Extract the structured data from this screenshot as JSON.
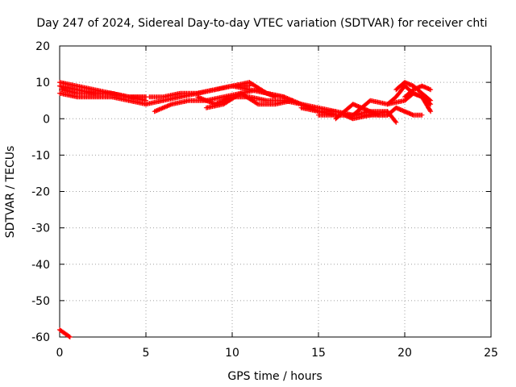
{
  "chart_data": {
    "type": "scatter",
    "title": "Day 247 of 2024, Sidereal Day-to-day VTEC variation (SDTVAR) for receiver chti",
    "xlabel": "GPS time / hours",
    "ylabel": "SDTVAR / TECUs",
    "xlim": [
      0,
      25
    ],
    "ylim": [
      -60,
      20
    ],
    "xticks": [
      0,
      5,
      10,
      15,
      20,
      25
    ],
    "yticks": [
      -60,
      -50,
      -40,
      -30,
      -20,
      -10,
      0,
      10,
      20
    ],
    "grid": true,
    "marker": "plus",
    "series": [
      {
        "name": "SDTVAR",
        "color": "#ff0000",
        "tracks": [
          {
            "x": [
              0.0,
              1.0,
              2.0,
              3.0,
              4.0,
              5.0
            ],
            "y": [
              9,
              8,
              7,
              7,
              6,
              5
            ]
          },
          {
            "x": [
              0.0,
              1.0,
              2.0,
              3.0,
              4.0,
              5.0
            ],
            "y": [
              10,
              9,
              8,
              7,
              6,
              6
            ]
          },
          {
            "x": [
              0.0,
              1.0,
              2.0,
              3.0,
              4.0,
              5.0
            ],
            "y": [
              7,
              6,
              6,
              6,
              5,
              4
            ]
          },
          {
            "x": [
              0.1,
              1.0,
              2.0,
              3.0,
              4.0,
              5.0
            ],
            "y": [
              8,
              7,
              7,
              7,
              6,
              6
            ]
          },
          {
            "x": [
              5.0,
              6.0,
              7.0,
              8.0,
              9.0,
              10.0,
              11.0
            ],
            "y": [
              4,
              5,
              6,
              7,
              8,
              9,
              9
            ]
          },
          {
            "x": [
              5.2,
              6.0,
              7.0,
              8.0,
              9.0,
              10.0,
              11.0,
              12.0,
              13.0
            ],
            "y": [
              6,
              6,
              7,
              7,
              8,
              9,
              10,
              7,
              6
            ]
          },
          {
            "x": [
              5.5,
              6.5,
              7.5,
              8.5,
              9.5,
              10.5,
              11.5,
              12.5
            ],
            "y": [
              2,
              4,
              5,
              5,
              6,
              7,
              8,
              6
            ]
          },
          {
            "x": [
              8.0,
              9.0,
              10.0,
              11.0,
              12.0,
              13.0
            ],
            "y": [
              6,
              4,
              6,
              6,
              5,
              5
            ]
          },
          {
            "x": [
              8.5,
              9.5,
              10.5,
              11.5,
              12.5,
              13.5
            ],
            "y": [
              3,
              4,
              7,
              4,
              4,
              5
            ]
          },
          {
            "x": [
              10.0,
              11.0,
              12.0,
              13.0,
              14.0,
              15.0,
              16.0
            ],
            "y": [
              9,
              8,
              7,
              6,
              4,
              3,
              2
            ]
          },
          {
            "x": [
              13.0,
              14.0,
              15.0,
              16.0,
              17.0,
              18.0,
              19.0
            ],
            "y": [
              5,
              4,
              2,
              1,
              1,
              2,
              2
            ]
          },
          {
            "x": [
              15.0,
              16.0,
              16.5,
              17.0,
              18.0,
              19.0,
              19.5
            ],
            "y": [
              1,
              1,
              1,
              0,
              1,
              2,
              -1
            ]
          },
          {
            "x": [
              14.0,
              15.0,
              16.0,
              17.0,
              18.0,
              19.0
            ],
            "y": [
              3,
              2,
              2,
              1,
              1,
              1
            ]
          },
          {
            "x": [
              16.0,
              16.5,
              17.0,
              17.5,
              18.0,
              18.5,
              19.0,
              19.5,
              20.0,
              20.5,
              21.0
            ],
            "y": [
              0,
              2,
              4,
              3,
              2,
              1,
              1,
              3,
              2,
              1,
              1
            ]
          },
          {
            "x": [
              17.0,
              17.5,
              18.0,
              19.0,
              20.0,
              20.5,
              21.0,
              21.5
            ],
            "y": [
              1,
              3,
              5,
              4,
              5,
              7,
              6,
              2
            ]
          },
          {
            "x": [
              19.0,
              19.5,
              20.0,
              20.5,
              21.0,
              21.5
            ],
            "y": [
              4,
              6,
              9,
              7,
              6,
              4
            ]
          },
          {
            "x": [
              19.5,
              20.0,
              20.5,
              21.0,
              21.5
            ],
            "y": [
              8,
              10,
              9,
              7,
              5
            ]
          },
          {
            "x": [
              20.0,
              20.5,
              21.0,
              21.5
            ],
            "y": [
              6,
              8,
              9,
              8
            ]
          },
          {
            "x": [
              0.0,
              0.3,
              0.6
            ],
            "y": [
              -58,
              -59,
              -60
            ]
          }
        ]
      }
    ]
  }
}
